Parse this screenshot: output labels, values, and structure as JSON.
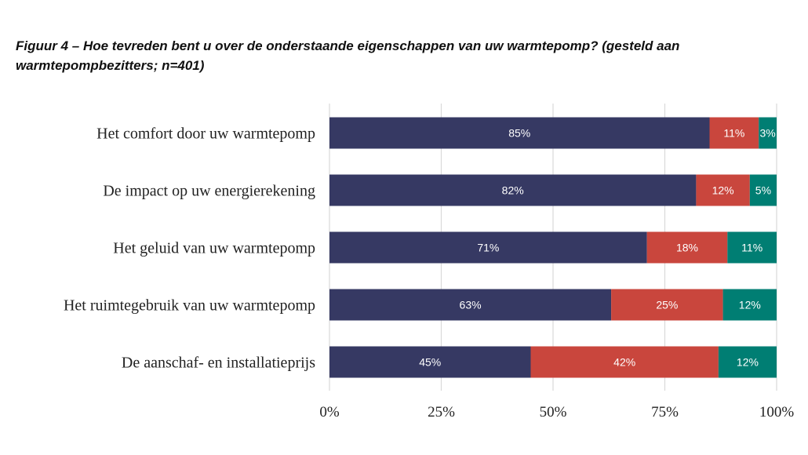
{
  "title": "Figuur 4 – Hoe tevreden bent u over de onderstaande eigenschappen van uw warmtepomp? (gesteld aan warmtepompbezitters; n=401)",
  "colors": {
    "background": "#ffffff",
    "grid": "#d9d9d9",
    "text": "#222222"
  },
  "chart_data": {
    "type": "bar",
    "orientation": "horizontal",
    "stacked": true,
    "title": "Figuur 4 – Hoe tevreden bent u over de onderstaande eigenschappen van uw warmtepomp? (gesteld aan warmtepompbezitters; n=401)",
    "categories": [
      "Het comfort door uw warmtepomp",
      "De impact op uw energierekening",
      "Het geluid van uw warmtepomp",
      "Het ruimtegebruik van uw warmtepomp",
      "De aanschaf- en installatieprijs"
    ],
    "series": [
      {
        "color": "#363963",
        "values": [
          85,
          82,
          71,
          63,
          45
        ],
        "labels": [
          "85%",
          "82%",
          "71%",
          "63%",
          "45%"
        ]
      },
      {
        "color": "#c9463d",
        "values": [
          11,
          12,
          18,
          25,
          42
        ],
        "labels": [
          "11%",
          "12%",
          "18%",
          "25%",
          "42%"
        ]
      },
      {
        "color": "#007e73",
        "values": [
          3,
          5,
          11,
          12,
          12
        ],
        "labels": [
          "3%",
          "5%",
          "11%",
          "12%",
          "12%"
        ]
      }
    ],
    "x_ticks": [
      0,
      25,
      50,
      75,
      100
    ],
    "x_tick_labels": [
      "0%",
      "25%",
      "50%",
      "75%",
      "100%"
    ],
    "xlim": [
      0,
      100
    ],
    "grid": true,
    "legend": "none"
  }
}
